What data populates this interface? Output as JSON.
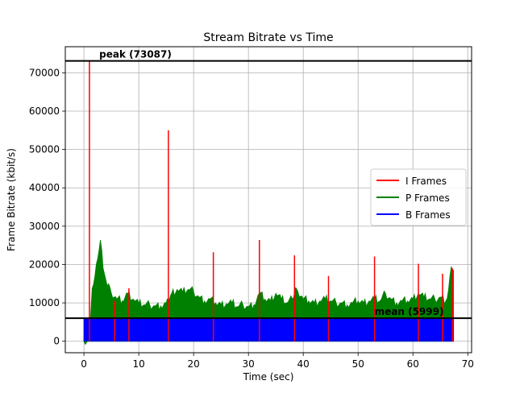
{
  "chart_data": {
    "type": "bar",
    "title": "Stream Bitrate vs Time",
    "xlabel": "Time (sec)",
    "ylabel": "Frame Bitrate (kbit/s)",
    "xlim": [
      -3.4,
      70.7
    ],
    "ylim": [
      -3000,
      76800
    ],
    "xticks": [
      0,
      10,
      20,
      30,
      40,
      50,
      60,
      70
    ],
    "yticks": [
      0,
      10000,
      20000,
      30000,
      40000,
      50000,
      60000,
      70000
    ],
    "grid": true,
    "legend_position": "center-right",
    "series": [
      {
        "name": "I Frames",
        "color": "#ff0000",
        "x": [
          1.0,
          5.6,
          8.2,
          15.4,
          23.6,
          32.0,
          38.4,
          44.6,
          53.0,
          61.0,
          65.4,
          67.2
        ],
        "values": [
          73087,
          10500,
          13800,
          55000,
          23200,
          26400,
          22400,
          17000,
          22100,
          20200,
          17600,
          19000
        ]
      },
      {
        "name": "P Frames",
        "color": "#008000",
        "x": [
          0.0,
          1.0,
          1.5,
          2.0,
          2.5,
          3.0,
          3.5,
          4.0,
          4.5,
          5.0,
          6.0,
          7.0,
          8.0,
          9.0,
          10.0,
          11.0,
          12.0,
          13.0,
          14.0,
          15.0,
          15.4,
          16.0,
          17.0,
          18.0,
          19.0,
          20.0,
          21.0,
          22.0,
          23.0,
          24.0,
          25.0,
          26.0,
          27.0,
          28.0,
          29.0,
          30.0,
          31.0,
          32.0,
          33.0,
          34.0,
          35.0,
          36.0,
          37.0,
          38.0,
          38.5,
          39.0,
          40.0,
          41.0,
          42.0,
          43.0,
          44.0,
          45.0,
          46.0,
          47.0,
          48.0,
          49.0,
          50.0,
          51.0,
          52.0,
          53.0,
          54.0,
          55.0,
          56.0,
          57.0,
          58.0,
          59.0,
          60.0,
          61.0,
          62.0,
          63.0,
          64.0,
          65.0,
          66.0,
          66.5,
          67.0,
          67.4
        ],
        "values": [
          0,
          0,
          13800,
          17000,
          21500,
          26400,
          19000,
          16000,
          15000,
          12500,
          11000,
          10500,
          12500,
          11000,
          9800,
          9500,
          9500,
          9200,
          9200,
          10000,
          11000,
          12500,
          13500,
          12800,
          13500,
          13000,
          11500,
          10500,
          11000,
          10000,
          9500,
          9800,
          10000,
          9000,
          9500,
          9000,
          9500,
          12500,
          11000,
          10500,
          12500,
          11000,
          10000,
          11000,
          14000,
          13000,
          11000,
          10500,
          10000,
          10500,
          11000,
          10500,
          10000,
          10000,
          9500,
          10000,
          10500,
          10000,
          10500,
          11000,
          10500,
          12500,
          11000,
          10000,
          10500,
          10500,
          11000,
          12500,
          11500,
          11000,
          11000,
          11500,
          10500,
          13500,
          19500,
          18500
        ]
      },
      {
        "name": "B Frames",
        "color": "#0000ff",
        "x": [
          0.0,
          67.4
        ],
        "values": [
          5999,
          5999
        ]
      }
    ],
    "annotations": [
      {
        "text": "peak (73087)",
        "x": 2.8,
        "y": 73087
      },
      {
        "text": "mean (5999)",
        "x": 53.0,
        "y": 5999
      }
    ],
    "hlines": [
      {
        "label": "peak",
        "y": 73087,
        "color": "#000000"
      },
      {
        "label": "mean",
        "y": 5999,
        "color": "#000000"
      }
    ]
  }
}
